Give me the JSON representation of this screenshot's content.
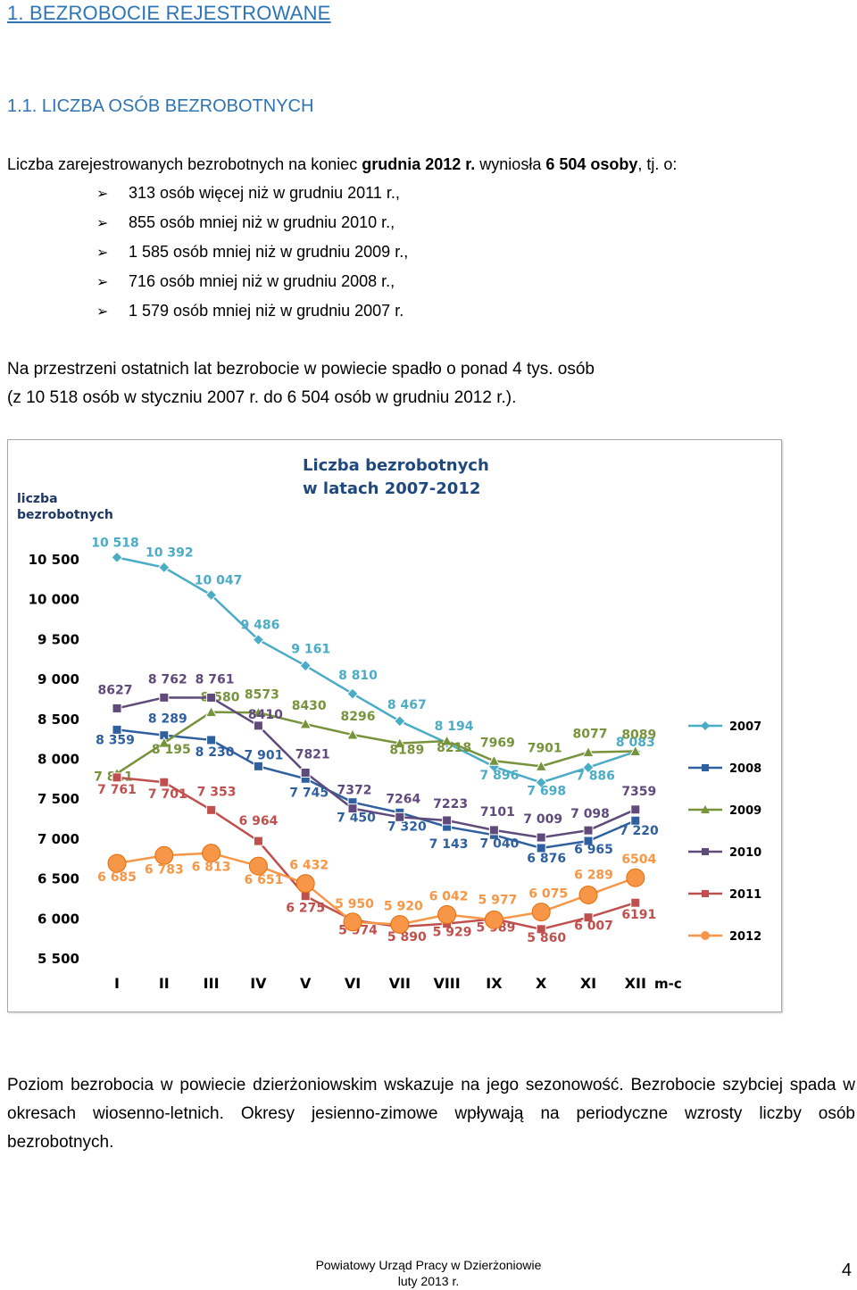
{
  "heading1": "1. BEZROBOCIE REJESTROWANE",
  "heading2": "1.1. LICZBA OSÓB BEZROBOTNYCH",
  "intro": {
    "pre": "Liczba zarejestrowanych bezrobotnych na koniec ",
    "bold1": "grudnia 2012 r.",
    "mid": " wyniosła ",
    "bold2": "6 504 osoby",
    "post": ", tj. o:"
  },
  "bullets": [
    "313 osób więcej niż w grudniu 2011 r.,",
    "855 osób mniej niż w grudniu 2010 r.,",
    "1 585 osób mniej niż w grudniu 2009 r.,",
    "716 osób mniej niż w grudniu 2008 r.,",
    "1 579 osób mniej niż w grudniu 2007 r."
  ],
  "summary_line1": "Na przestrzeni ostatnich lat bezrobocie w powiecie spadło o ponad 4 tys. osób",
  "summary_line2": "(z 10 518 osób w styczniu 2007 r. do 6 504 osób w grudniu 2012 r.).",
  "closing": "Poziom bezrobocia w powiecie dzierżoniowskim wskazuje na jego sezonowość. Bezrobocie szybciej spada w okresach wiosenno-letnich. Okresy jesienno-zimowe wpływają na periodyczne wzrosty liczby osób bezrobotnych.",
  "footer_line1": "Powiatowy Urząd Pracy w Dzierżoniowie",
  "footer_line2": "luty 2013 r.",
  "page_number": "4",
  "chart_data": {
    "type": "line",
    "title_line1": "Liczba bezrobotnych",
    "title_line2": "w latach 2007-2012",
    "ylabel_line1": "liczba",
    "ylabel_line2": "bezrobotnych",
    "xlabel": "m-c",
    "categories": [
      "I",
      "II",
      "III",
      "IV",
      "V",
      "VI",
      "VII",
      "VIII",
      "IX",
      "X",
      "XI",
      "XII"
    ],
    "ylim": [
      5500,
      10500
    ],
    "yticks": [
      "10 500",
      "10 000",
      "9 500",
      "9 000",
      "8 500",
      "8 000",
      "7 500",
      "7 000",
      "6 500",
      "6 000",
      "5 500"
    ],
    "grid": false,
    "legend_position": "right",
    "series": [
      {
        "name": "2007",
        "color": "#4bacc6",
        "marker": "diamond",
        "values": [
          10518,
          10392,
          10047,
          9486,
          9161,
          8810,
          8467,
          8194,
          7896,
          7698,
          7886,
          8083
        ],
        "labels": [
          "10 518",
          "10 392",
          "10 047",
          "9 486",
          "9 161",
          "8 810",
          "8 467",
          "8 194",
          "7 896",
          "7 698",
          "7 886",
          "8 083"
        ]
      },
      {
        "name": "2008",
        "color": "#2e5f9e",
        "marker": "square",
        "values": [
          8359,
          8289,
          8230,
          7901,
          7745,
          7450,
          7320,
          7143,
          7040,
          6876,
          6965,
          7220
        ],
        "labels": [
          "8 359",
          "8 289",
          "8 230",
          "7 901",
          "7 745",
          "7 450",
          "7 320",
          "7 143",
          "7 040",
          "6 876",
          "6 965",
          "7 220"
        ]
      },
      {
        "name": "2009",
        "color": "#77933c",
        "marker": "triangle",
        "values": [
          7811,
          8195,
          8580,
          8573,
          8430,
          8296,
          8189,
          8218,
          7969,
          7901,
          8077,
          8089
        ],
        "labels": [
          "7 811",
          "8 195",
          "8 580",
          "8573",
          "8430",
          "8296",
          "8189",
          "8218",
          "7969",
          "7901",
          "8077",
          "8089"
        ]
      },
      {
        "name": "2010",
        "color": "#604a7b",
        "marker": "square",
        "values": [
          8627,
          8762,
          8761,
          8410,
          7821,
          7372,
          7264,
          7223,
          7101,
          7009,
          7098,
          7359
        ],
        "labels": [
          "8627",
          "8 762",
          "8 761",
          "8410",
          "7821",
          "7372",
          "7264",
          "7223",
          "7101",
          "7 009",
          "7 098",
          "7359"
        ]
      },
      {
        "name": "2011",
        "color": "#c0504d",
        "marker": "square",
        "values": [
          7761,
          7701,
          7353,
          6964,
          6275,
          5974,
          5890,
          5929,
          5989,
          5860,
          6007,
          6191
        ],
        "labels": [
          "7 761",
          "7 701",
          "7 353",
          "6 964",
          "6 275",
          "5 974",
          "5 890",
          "5 929",
          "5 989",
          "5 860",
          "6 007",
          "6191"
        ]
      },
      {
        "name": "2012",
        "color": "#f79646",
        "marker": "circle",
        "values": [
          6685,
          6783,
          6813,
          6651,
          6432,
          5950,
          5920,
          6042,
          5977,
          6075,
          6289,
          6504
        ],
        "labels": [
          "6 685",
          "6 783",
          "6 813",
          "6 651",
          "6 432",
          "5 950",
          "5 920",
          "6 042",
          "5 977",
          "6 075",
          "6 289",
          "6504"
        ]
      }
    ]
  }
}
